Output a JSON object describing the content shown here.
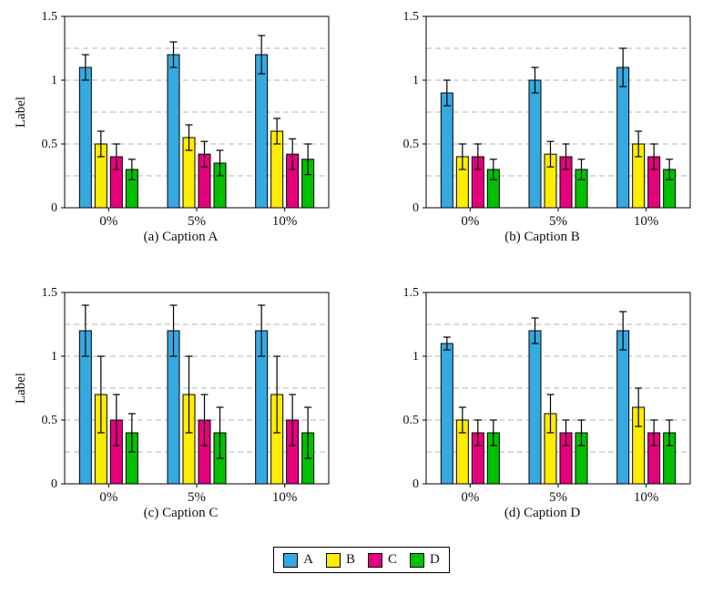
{
  "chart_data": [
    {
      "type": "bar",
      "caption": "(a) Caption A",
      "ylabel": "Label",
      "categories": [
        "0%",
        "5%",
        "10%"
      ],
      "ylim": [
        0,
        1.5
      ],
      "yticks": [
        0,
        0.5,
        1,
        1.5
      ],
      "ytick_labels": [
        "0",
        "0.5",
        "1",
        "1.5"
      ],
      "gridlines_dashed": [
        0.25,
        0.5,
        0.75,
        1.0,
        1.25
      ],
      "series": [
        {
          "name": "A",
          "color": "#36A9E1",
          "values": [
            1.1,
            1.2,
            1.2
          ],
          "errors": [
            0.1,
            0.1,
            0.15
          ]
        },
        {
          "name": "B",
          "color": "#FFED00",
          "values": [
            0.5,
            0.55,
            0.6
          ],
          "errors": [
            0.1,
            0.1,
            0.1
          ]
        },
        {
          "name": "C",
          "color": "#E6007E",
          "values": [
            0.4,
            0.42,
            0.42
          ],
          "errors": [
            0.1,
            0.1,
            0.12
          ]
        },
        {
          "name": "D",
          "color": "#00C000",
          "values": [
            0.3,
            0.35,
            0.38
          ],
          "errors": [
            0.08,
            0.1,
            0.12
          ]
        }
      ]
    },
    {
      "type": "bar",
      "caption": "(b) Caption B",
      "ylabel": "",
      "categories": [
        "0%",
        "5%",
        "10%"
      ],
      "ylim": [
        0,
        1.5
      ],
      "yticks": [
        0,
        0.5,
        1,
        1.5
      ],
      "ytick_labels": [
        "0",
        "0.5",
        "1",
        "1.5"
      ],
      "gridlines_dashed": [
        0.25,
        0.5,
        0.75,
        1.0,
        1.25
      ],
      "series": [
        {
          "name": "A",
          "color": "#36A9E1",
          "values": [
            0.9,
            1.0,
            1.1
          ],
          "errors": [
            0.1,
            0.1,
            0.15
          ]
        },
        {
          "name": "B",
          "color": "#FFED00",
          "values": [
            0.4,
            0.42,
            0.5
          ],
          "errors": [
            0.1,
            0.1,
            0.1
          ]
        },
        {
          "name": "C",
          "color": "#E6007E",
          "values": [
            0.4,
            0.4,
            0.4
          ],
          "errors": [
            0.1,
            0.1,
            0.1
          ]
        },
        {
          "name": "D",
          "color": "#00C000",
          "values": [
            0.3,
            0.3,
            0.3
          ],
          "errors": [
            0.08,
            0.08,
            0.08
          ]
        }
      ]
    },
    {
      "type": "bar",
      "caption": "(c) Caption C",
      "ylabel": "Label",
      "categories": [
        "0%",
        "5%",
        "10%"
      ],
      "ylim": [
        0,
        1.5
      ],
      "yticks": [
        0,
        0.5,
        1,
        1.5
      ],
      "ytick_labels": [
        "0",
        "0.5",
        "1",
        "1.5"
      ],
      "gridlines_dashed": [
        0.25,
        0.5,
        0.75,
        1.0,
        1.25
      ],
      "series": [
        {
          "name": "A",
          "color": "#36A9E1",
          "values": [
            1.2,
            1.2,
            1.2
          ],
          "errors": [
            0.2,
            0.2,
            0.2
          ]
        },
        {
          "name": "B",
          "color": "#FFED00",
          "values": [
            0.7,
            0.7,
            0.7
          ],
          "errors": [
            0.3,
            0.3,
            0.3
          ]
        },
        {
          "name": "C",
          "color": "#E6007E",
          "values": [
            0.5,
            0.5,
            0.5
          ],
          "errors": [
            0.2,
            0.2,
            0.2
          ]
        },
        {
          "name": "D",
          "color": "#00C000",
          "values": [
            0.4,
            0.4,
            0.4
          ],
          "errors": [
            0.15,
            0.2,
            0.2
          ]
        }
      ]
    },
    {
      "type": "bar",
      "caption": "(d) Caption D",
      "ylabel": "",
      "categories": [
        "0%",
        "5%",
        "10%"
      ],
      "ylim": [
        0,
        1.5
      ],
      "yticks": [
        0,
        0.5,
        1,
        1.5
      ],
      "ytick_labels": [
        "0",
        "0.5",
        "1",
        "1.5"
      ],
      "gridlines_dashed": [
        0.25,
        0.5,
        0.75,
        1.0,
        1.25
      ],
      "series": [
        {
          "name": "A",
          "color": "#36A9E1",
          "values": [
            1.1,
            1.2,
            1.2
          ],
          "errors": [
            0.05,
            0.1,
            0.15
          ]
        },
        {
          "name": "B",
          "color": "#FFED00",
          "values": [
            0.5,
            0.55,
            0.6
          ],
          "errors": [
            0.1,
            0.15,
            0.15
          ]
        },
        {
          "name": "C",
          "color": "#E6007E",
          "values": [
            0.4,
            0.4,
            0.4
          ],
          "errors": [
            0.1,
            0.1,
            0.1
          ]
        },
        {
          "name": "D",
          "color": "#00C000",
          "values": [
            0.4,
            0.4,
            0.4
          ],
          "errors": [
            0.1,
            0.1,
            0.1
          ]
        }
      ]
    }
  ],
  "legend": {
    "items": [
      {
        "label": "A",
        "color": "#36A9E1"
      },
      {
        "label": "B",
        "color": "#FFED00"
      },
      {
        "label": "C",
        "color": "#E6007E"
      },
      {
        "label": "D",
        "color": "#00C000"
      }
    ]
  }
}
